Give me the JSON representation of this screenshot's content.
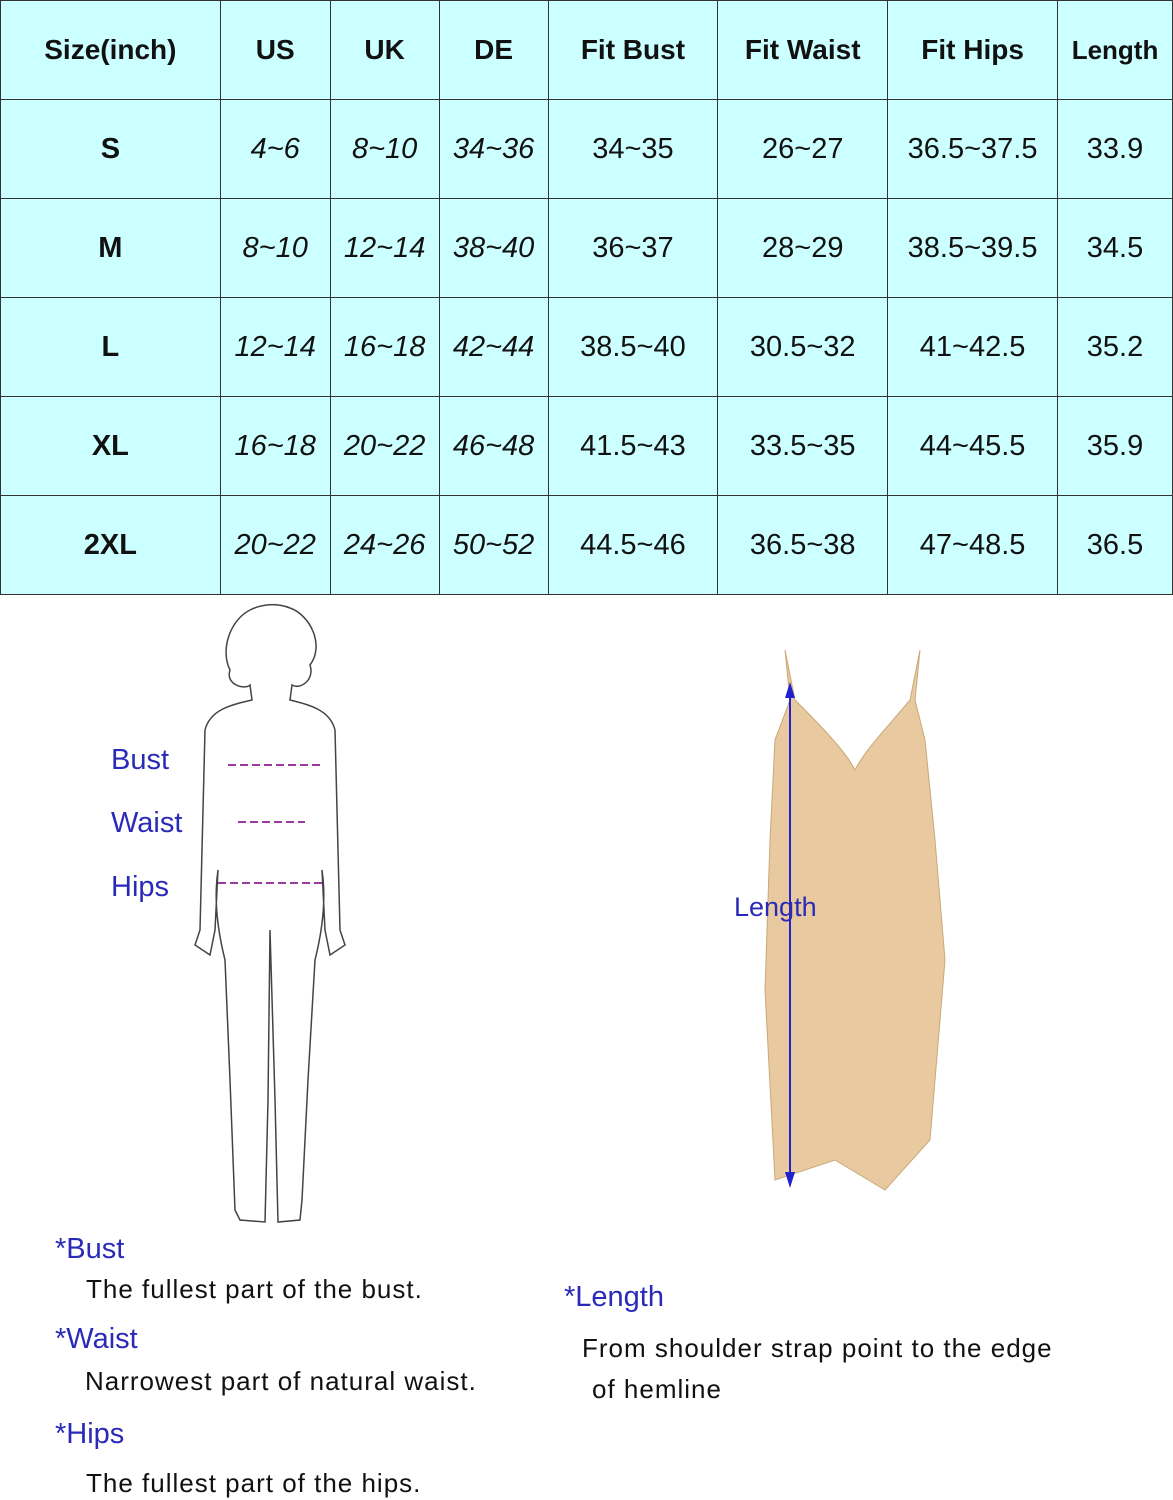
{
  "table": {
    "headers": [
      "Size(inch)",
      "US",
      "UK",
      "DE",
      "Fit Bust",
      "Fit Waist",
      "Fit Hips",
      "Length"
    ],
    "rows": [
      [
        "S",
        "4~6",
        "8~10",
        "34~36",
        "34~35",
        "26~27",
        "36.5~37.5",
        "33.9"
      ],
      [
        "M",
        "8~10",
        "12~14",
        "38~40",
        "36~37",
        "28~29",
        "38.5~39.5",
        "34.5"
      ],
      [
        "L",
        "12~14",
        "16~18",
        "42~44",
        "38.5~40",
        "30.5~32",
        "41~42.5",
        "35.2"
      ],
      [
        "XL",
        "16~18",
        "20~22",
        "46~48",
        "41.5~43",
        "33.5~35",
        "44~45.5",
        "35.9"
      ],
      [
        "2XL",
        "20~22",
        "24~26",
        "50~52",
        "44.5~46",
        "36.5~38",
        "47~48.5",
        "36.5"
      ]
    ]
  },
  "figure": {
    "bust": "Bust",
    "waist": "Waist",
    "hips": "Hips",
    "length": "Length"
  },
  "notes": {
    "bust_title": "*Bust",
    "bust_desc": "The fullest part of the bust.",
    "waist_title": "*Waist",
    "waist_desc": "Narrowest part of natural waist.",
    "hips_title": "*Hips",
    "hips_desc": "The fullest part of the hips.",
    "length_title": "*Length",
    "length_desc1": "From shoulder strap point to the edge",
    "length_desc2": "of hemline"
  },
  "colors": {
    "table_bg": "#ccffff",
    "label_blue": "#2a2ab8",
    "dress": "#e8c9a0"
  }
}
